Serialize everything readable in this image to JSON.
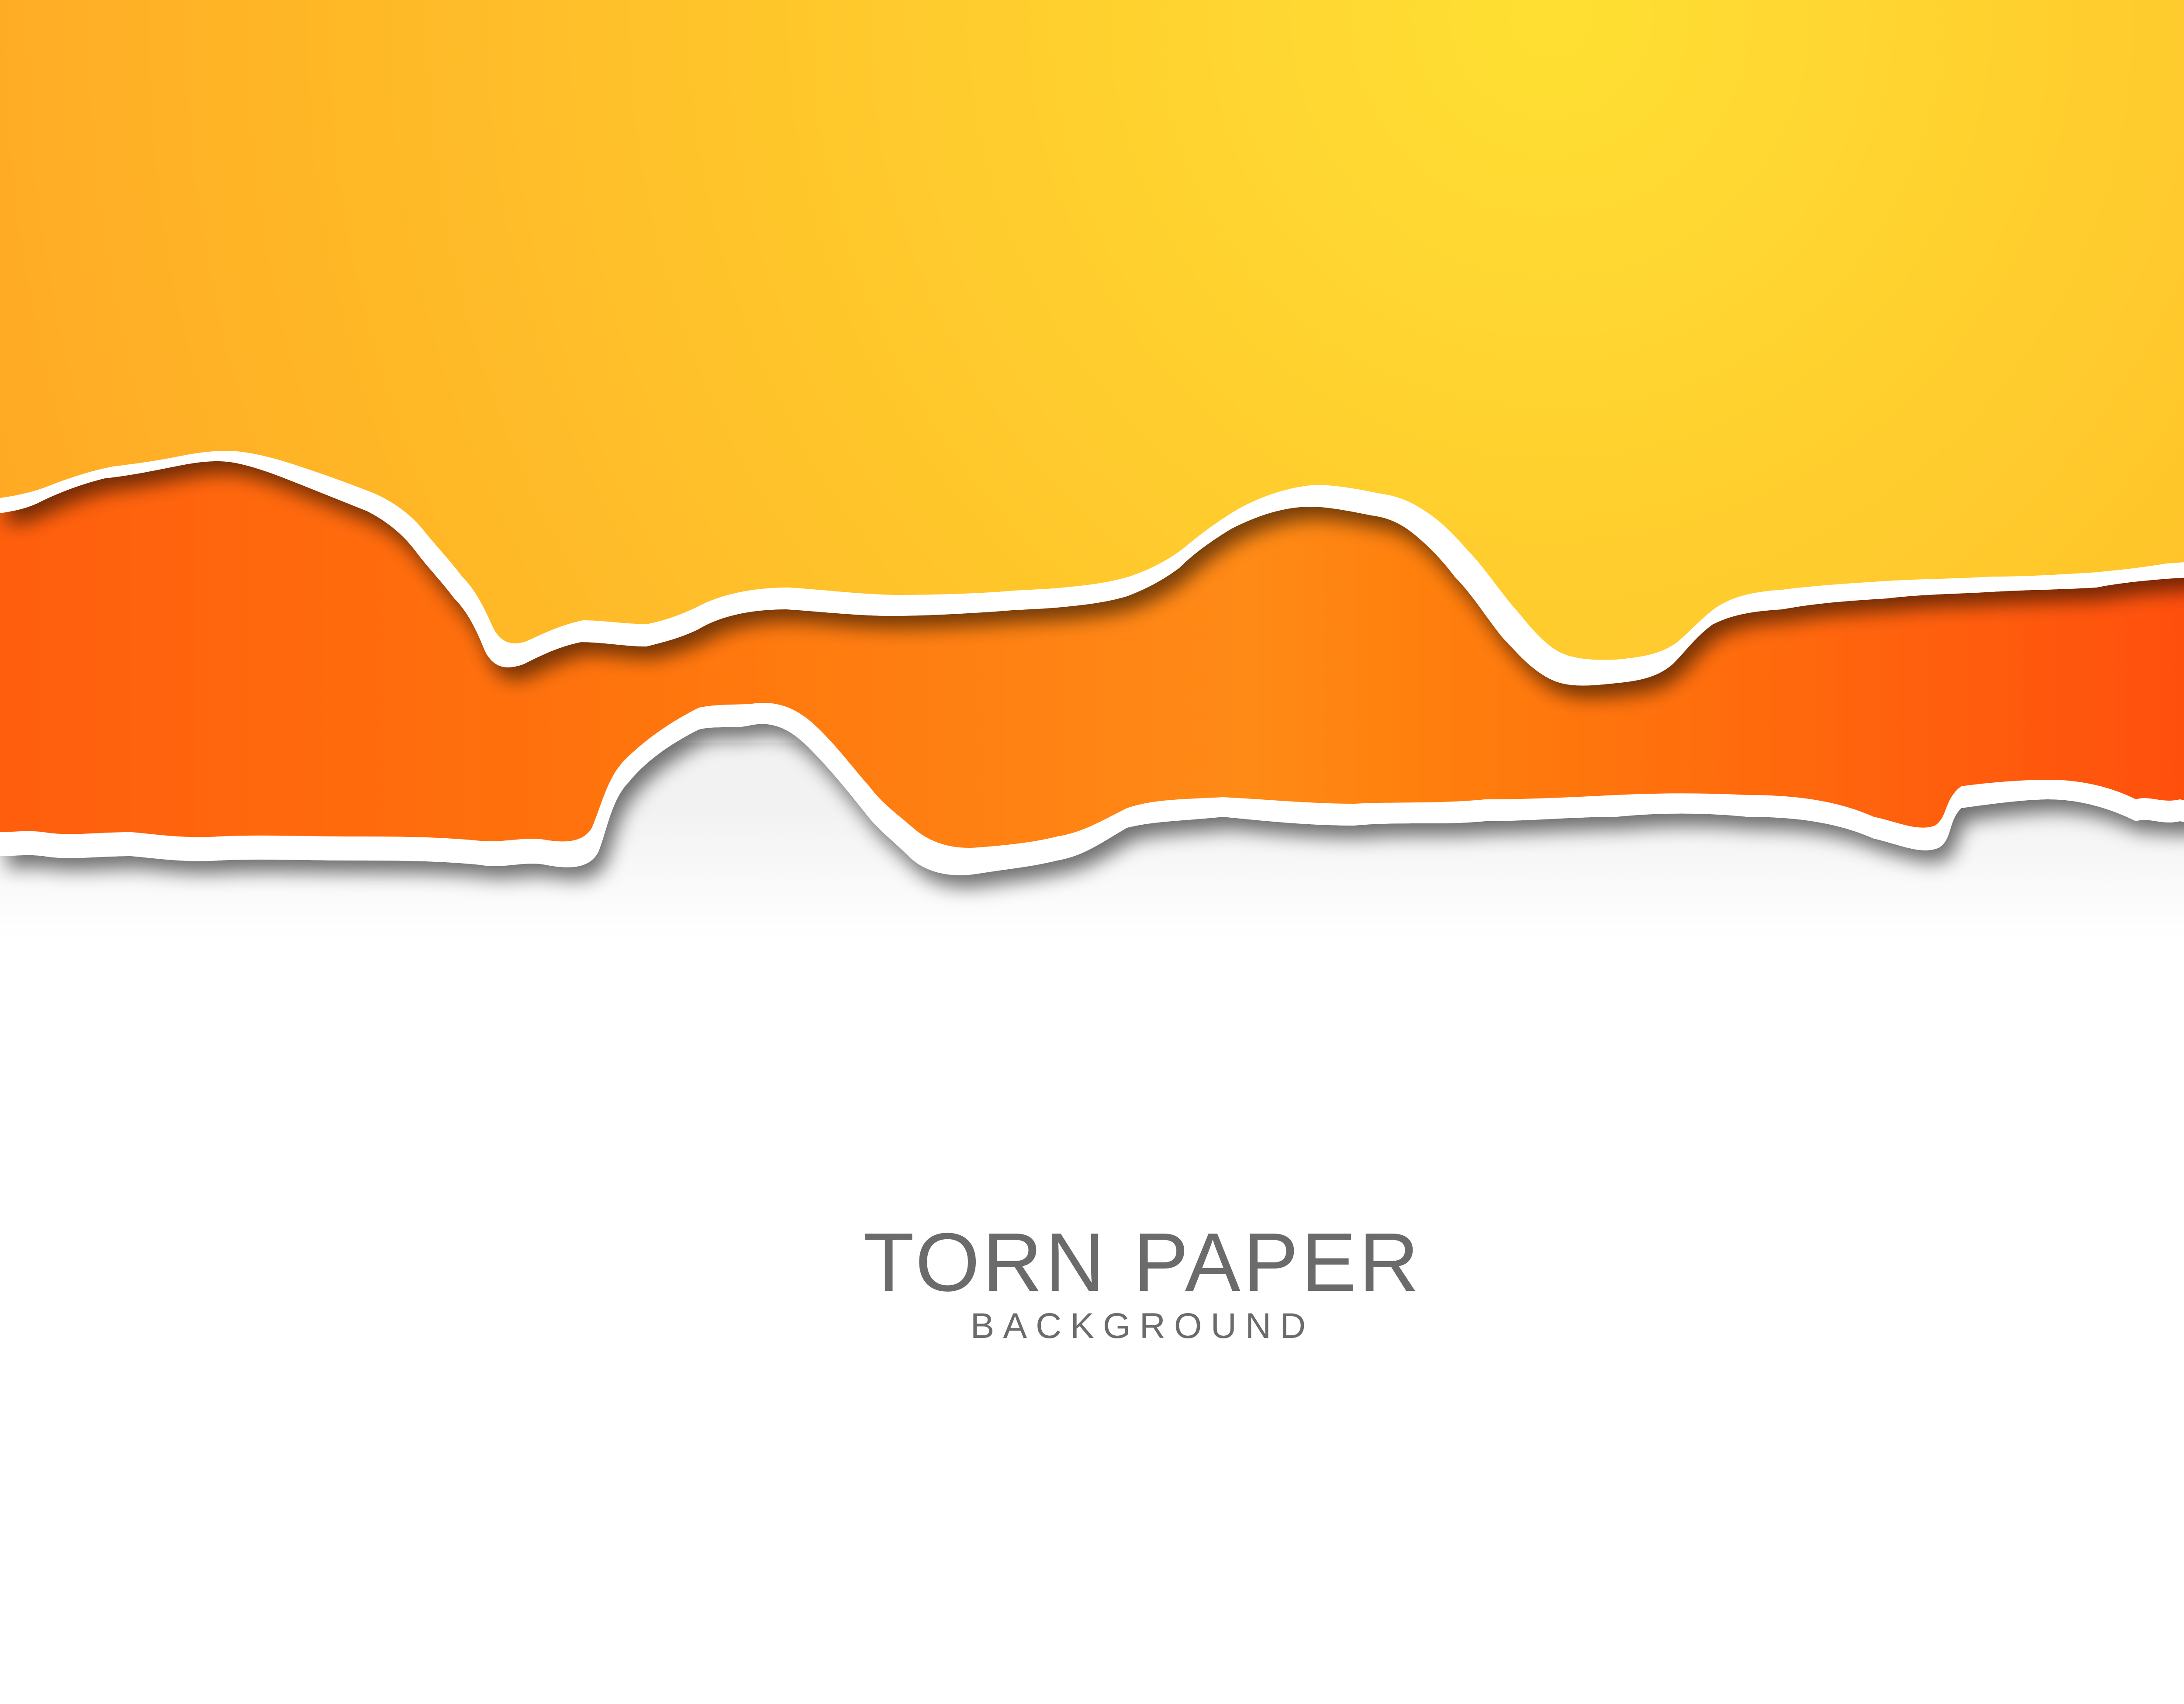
{
  "heading": {
    "title": "TORN PAPER",
    "subtitle": "BACKGROUND"
  },
  "colors": {
    "top_paper_light": "#ffe033",
    "top_paper_dark": "#ffa322",
    "middle_paper_light": "#ff8a12",
    "middle_paper_dark": "#ff4a0c",
    "paper_edge": "#ffffff",
    "bottom_paper": "#ffffff",
    "text": "#6b6b6b"
  }
}
